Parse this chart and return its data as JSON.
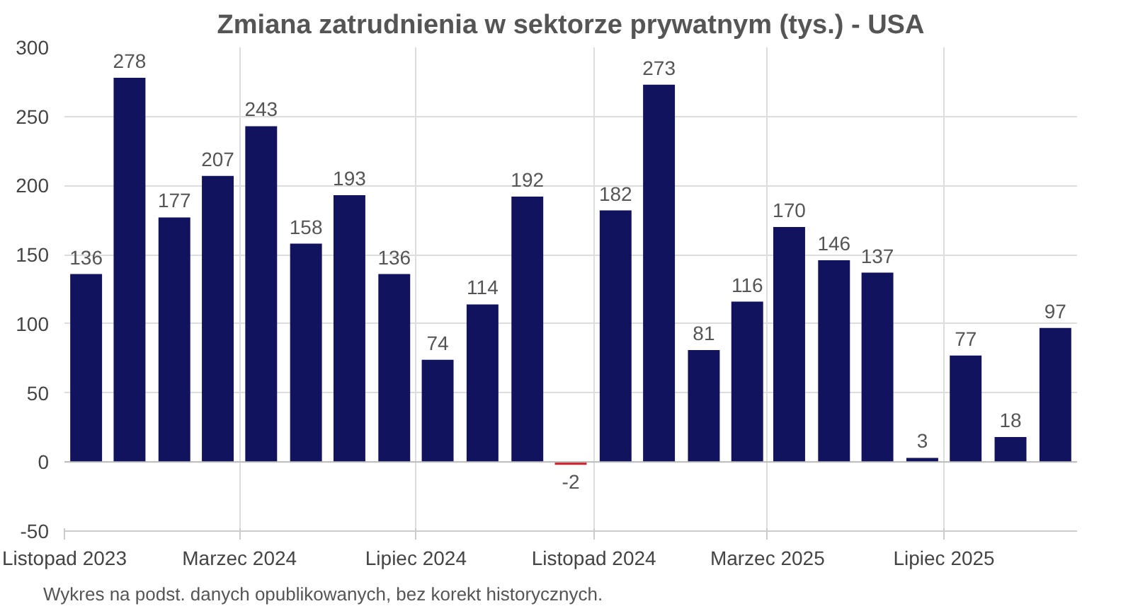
{
  "chart_data": {
    "type": "bar",
    "title": "Zmiana zatrudnienia w sektorze prywatnym (tys.) - USA",
    "x": [
      "2023-11-16",
      "2023-12-16",
      "2024-01-16",
      "2024-02-15",
      "2024-03-16",
      "2024-04-16",
      "2024-05-16",
      "2024-06-16",
      "2024-07-16",
      "2024-08-16",
      "2024-09-16",
      "2024-10-16",
      "2024-11-16",
      "2024-12-16",
      "2025-01-16",
      "2025-02-15",
      "2025-03-16",
      "2025-04-16",
      "2025-05-16",
      "2025-06-16",
      "2025-07-16",
      "2025-08-16",
      "2025-09-16"
    ],
    "values": [
      136,
      278,
      177,
      207,
      243,
      158,
      193,
      136,
      74,
      114,
      192,
      -2,
      182,
      273,
      81,
      116,
      170,
      146,
      137,
      3,
      77,
      18,
      97
    ],
    "colors": [
      "#12135e",
      "#12135e",
      "#12135e",
      "#12135e",
      "#12135e",
      "#12135e",
      "#12135e",
      "#12135e",
      "#12135e",
      "#12135e",
      "#12135e",
      "#d0202a",
      "#12135e",
      "#12135e",
      "#12135e",
      "#12135e",
      "#12135e",
      "#12135e",
      "#12135e",
      "#12135e",
      "#12135e",
      "#12135e",
      "#12135e"
    ],
    "data_labels": true,
    "xlim": [
      "2023-11",
      "2025-10"
    ],
    "xticks": [
      {
        "value": "2023-11",
        "label": "Listopad 2023"
      },
      {
        "value": "2024-03",
        "label": "Marzec 2024"
      },
      {
        "value": "2024-07",
        "label": "Lipiec 2024"
      },
      {
        "value": "2024-11",
        "label": "Listopad 2024"
      },
      {
        "value": "2025-03",
        "label": "Marzec 2025"
      },
      {
        "value": "2025-07",
        "label": "Lipiec 2025"
      }
    ],
    "ylim": [
      -50,
      300
    ],
    "yticks": [
      -50,
      0,
      50,
      100,
      150,
      200,
      250,
      300
    ],
    "grid": true,
    "annotations": [
      "Wykres na podst. danych opublikowanych, bez korekt historycznych."
    ]
  }
}
